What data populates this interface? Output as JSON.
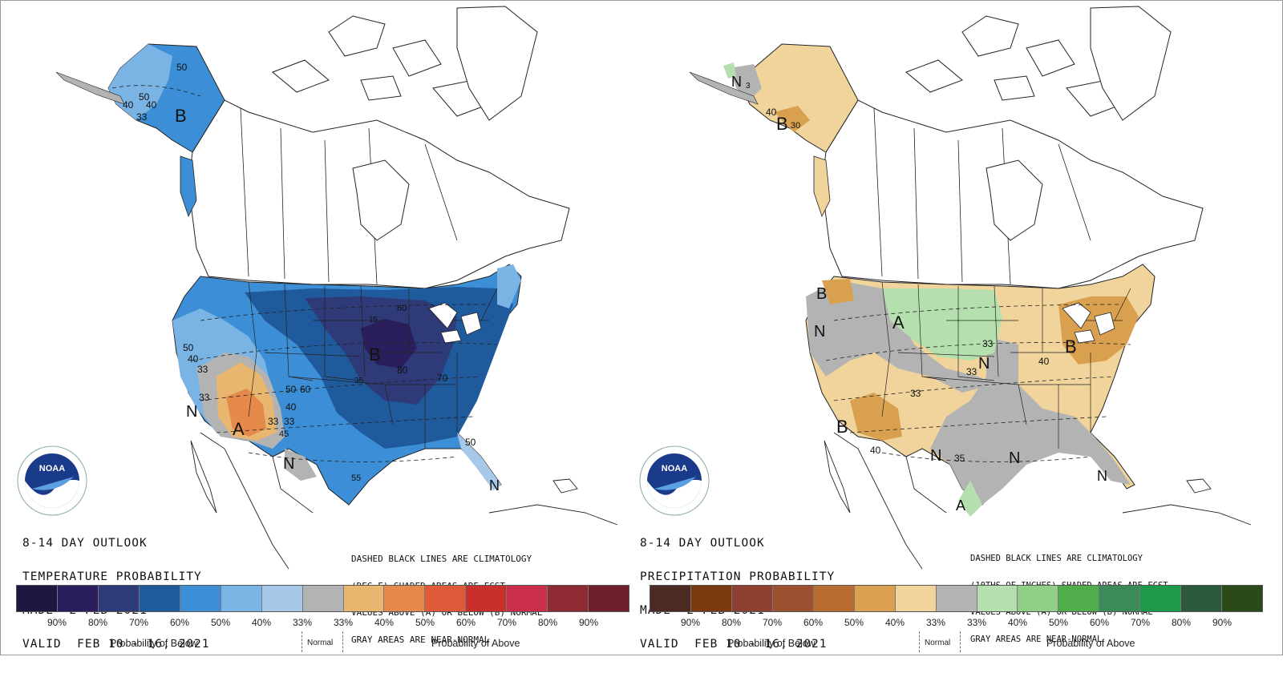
{
  "panels": [
    {
      "id": "temperature",
      "header": [
        "8-14 DAY OUTLOOK",
        "TEMPERATURE PROBABILITY",
        "MADE  2 FEB 2021",
        "VALID  FEB 10 - 16, 2021"
      ],
      "note": [
        "DASHED BLACK LINES ARE CLIMATOLOGY",
        "(DEG F) SHADED AREAS ARE FCST",
        "VALUES ABOVE (A) OR BELOW (B) NORMAL",
        "GRAY AREAS ARE NEAR-NORMAL"
      ],
      "logo_text": "NOAA",
      "legend_colors": [
        "#1f1742",
        "#2a1f5c",
        "#2f3a78",
        "#1f5a9c",
        "#3c8fd6",
        "#7ab4e5",
        "#a7c8e8",
        "#b3b3b3",
        "#e8b66f",
        "#e58a4b",
        "#de5a39",
        "#c9302c",
        "#c92e4b",
        "#8e2a34",
        "#6e1f2a"
      ],
      "legend_percent_labels": [
        "90%",
        "80%",
        "70%",
        "60%",
        "50%",
        "40%",
        "33%",
        "33%",
        "40%",
        "50%",
        "60%",
        "70%",
        "80%",
        "90%"
      ],
      "caption_below": "Probability of Below",
      "caption_normal": "Normal",
      "caption_above": "Probability of Above",
      "map_labels": {
        "ak_b": "B",
        "ak_50a": "50",
        "ak_50b": "50",
        "ak_40a": "40",
        "ak_40b": "40",
        "ak_33": "33",
        "sw_a": "A",
        "sw_n": "N",
        "nd_b": "B",
        "tx_n": "N",
        "fl_n": "N",
        "c50a": "50",
        "c40a": "40",
        "c33a": "33",
        "c33b": "33",
        "c50b": "50",
        "c60a": "60",
        "c40b": "40",
        "c33c": "33",
        "c33d": "33",
        "c45": "45",
        "c80": "80",
        "c70": "70",
        "c60b": "60",
        "c50c": "50",
        "c55": "55",
        "c15": "15",
        "c35": "35"
      }
    },
    {
      "id": "precipitation",
      "header": [
        "8-14 DAY OUTLOOK",
        "PRECIPITATION PROBABILITY",
        "MADE  2 FEB 2021",
        "VALID  FEB 10 - 16, 2021"
      ],
      "note": [
        "DASHED BLACK LINES ARE CLIMATOLOGY",
        "(10THS OF INCHES) SHADED AREAS ARE FCST",
        "VALUES ABOVE (A) OR BELOW (B) NORMAL",
        "GRAY AREAS ARE NEAR-NORMAL"
      ],
      "logo_text": "NOAA",
      "legend_colors": [
        "#4a2a22",
        "#7a3a10",
        "#8e4030",
        "#9c5030",
        "#b86c30",
        "#d9a050",
        "#f0d49c",
        "#b3b3b3",
        "#b6dfb0",
        "#8fcf86",
        "#4fae4a",
        "#3a8a5a",
        "#1f9a48",
        "#2a5a3a",
        "#2a4a1a"
      ],
      "legend_percent_labels": [
        "90%",
        "80%",
        "70%",
        "60%",
        "50%",
        "40%",
        "33%",
        "33%",
        "40%",
        "50%",
        "60%",
        "70%",
        "80%",
        "90%"
      ],
      "caption_below": "Probability of Below",
      "caption_normal": "Normal",
      "caption_above": "Probability of Above",
      "map_labels": {
        "ak_n": "N",
        "ak_b": "B",
        "ak_40": "40",
        "ak_3": "3",
        "ak_30": "30",
        "nw_b": "B",
        "nw_n": "N",
        "mt_a": "A",
        "ne_b": "B",
        "sw_b": "B",
        "c33a": "33",
        "c33b": "33",
        "c33c": "33",
        "c40a": "40",
        "c40b": "40",
        "c35": "35",
        "mw_n": "N",
        "sc_n": "N",
        "se_n": "N",
        "fl_n": "N",
        "tx_a": "A"
      }
    }
  ]
}
